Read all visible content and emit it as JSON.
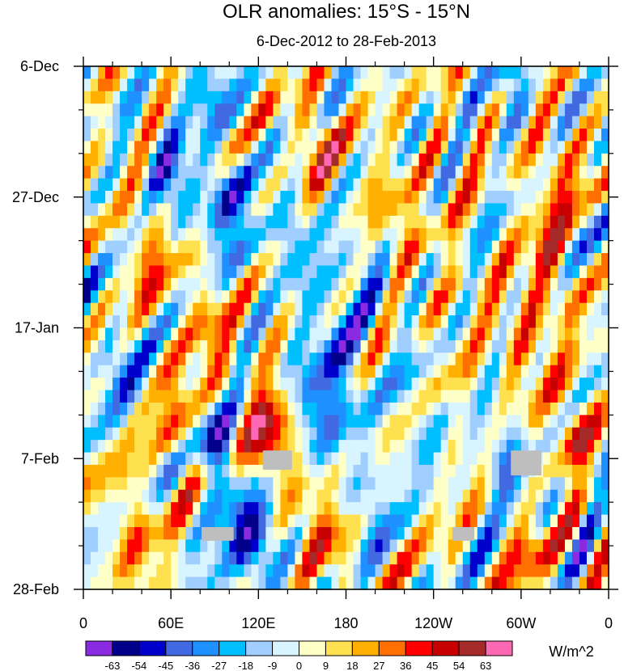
{
  "chart_data": {
    "type": "heatmap",
    "title": "OLR anomalies: 15°S - 15°N",
    "subtitle": "6-Dec-2012 to 28-Feb-2013",
    "x_ticks": [
      "0",
      "60E",
      "120E",
      "180",
      "120W",
      "60W",
      "0"
    ],
    "x_tick_values": [
      0,
      60,
      120,
      180,
      240,
      300,
      360
    ],
    "xlim": [
      0,
      360
    ],
    "y_ticks": [
      "6-Dec",
      "27-Dec",
      "17-Jan",
      "7-Feb",
      "28-Feb"
    ],
    "y_tick_values": [
      0,
      21,
      42,
      63,
      84
    ],
    "ylim": [
      0,
      84
    ],
    "units": "W/m^2",
    "colorbar_labels": [
      "-63",
      "-54",
      "-45",
      "-36",
      "-27",
      "-18",
      "-9",
      "0",
      "9",
      "18",
      "27",
      "36",
      "45",
      "54",
      "63"
    ],
    "colorbar_colors": [
      "#8a2be2",
      "#00008b",
      "#0000cd",
      "#4169e1",
      "#1e90ff",
      "#00bfff",
      "#a0cfff",
      "#d8f4ff",
      "#ffffc8",
      "#ffe14f",
      "#ffb000",
      "#ff7000",
      "#ff0000",
      "#c80000",
      "#a52a2a",
      "#ff69b4"
    ],
    "levels": [
      -63,
      -54,
      -45,
      -36,
      -27,
      -18,
      -9,
      0,
      9,
      18,
      27,
      36,
      45,
      54,
      63
    ],
    "missing_color": "#bebebe",
    "features": [
      {
        "lon": 85,
        "day": 4,
        "amp": -35,
        "sl": 8,
        "sd": 4
      },
      {
        "lon": 160,
        "day": 12,
        "amp": 38,
        "sl": 10,
        "sd": 5
      },
      {
        "lon": 60,
        "day": 18,
        "amp": -40,
        "sl": 10,
        "sd": 5
      },
      {
        "lon": 300,
        "day": 6,
        "amp": -28,
        "sl": 10,
        "sd": 5
      },
      {
        "lon": 320,
        "day": 15,
        "amp": 34,
        "sl": 12,
        "sd": 5
      },
      {
        "lon": 100,
        "day": 23,
        "amp": -42,
        "sl": 12,
        "sd": 6
      },
      {
        "lon": 145,
        "day": 28,
        "amp": -30,
        "sl": 8,
        "sd": 5
      },
      {
        "lon": 45,
        "day": 30,
        "amp": 30,
        "sl": 10,
        "sd": 6
      },
      {
        "lon": 210,
        "day": 24,
        "amp": 26,
        "sl": 14,
        "sd": 6
      },
      {
        "lon": 195,
        "day": 32,
        "amp": -24,
        "sl": 12,
        "sd": 5
      },
      {
        "lon": 320,
        "day": 32,
        "amp": 30,
        "sl": 12,
        "sd": 7
      },
      {
        "lon": 85,
        "day": 41,
        "amp": 30,
        "sl": 10,
        "sd": 6
      },
      {
        "lon": 175,
        "day": 45,
        "amp": -30,
        "sl": 14,
        "sd": 7
      },
      {
        "lon": 25,
        "day": 48,
        "amp": -25,
        "sl": 10,
        "sd": 6
      },
      {
        "lon": 300,
        "day": 44,
        "amp": 24,
        "sl": 12,
        "sd": 7
      },
      {
        "lon": 65,
        "day": 57,
        "amp": 32,
        "sl": 8,
        "sd": 6
      },
      {
        "lon": 128,
        "day": 59,
        "amp": 52,
        "sl": 12,
        "sd": 6
      },
      {
        "lon": 160,
        "day": 54,
        "amp": -38,
        "sl": 12,
        "sd": 5
      },
      {
        "lon": 92,
        "day": 62,
        "amp": -48,
        "sl": 9,
        "sd": 5
      },
      {
        "lon": 230,
        "day": 56,
        "amp": -20,
        "sl": 10,
        "sd": 6
      },
      {
        "lon": 290,
        "day": 64,
        "amp": -34,
        "sl": 10,
        "sd": 5
      },
      {
        "lon": 335,
        "day": 58,
        "amp": 36,
        "sl": 10,
        "sd": 6
      },
      {
        "lon": 115,
        "day": 76,
        "amp": -55,
        "sl": 14,
        "sd": 5
      },
      {
        "lon": 165,
        "day": 76,
        "amp": 36,
        "sl": 12,
        "sd": 5
      },
      {
        "lon": 35,
        "day": 74,
        "amp": 28,
        "sl": 12,
        "sd": 6
      },
      {
        "lon": 195,
        "day": 70,
        "amp": -22,
        "sl": 12,
        "sd": 6
      },
      {
        "lon": 305,
        "day": 78,
        "amp": 30,
        "sl": 10,
        "sd": 5
      },
      {
        "lon": 250,
        "day": 40,
        "amp": 6,
        "sl": 16,
        "sd": 30
      }
    ],
    "missing_regions": [
      {
        "lon": [
          123,
          143
        ],
        "day": [
          61.7,
          64.8
        ]
      },
      {
        "lon": [
          293,
          314
        ],
        "day": [
          61.7,
          65.7
        ]
      },
      {
        "lon": [
          81,
          103
        ],
        "day": [
          74,
          76.2
        ]
      },
      {
        "lon": [
          253,
          268
        ],
        "day": [
          74,
          76.2
        ]
      }
    ]
  }
}
